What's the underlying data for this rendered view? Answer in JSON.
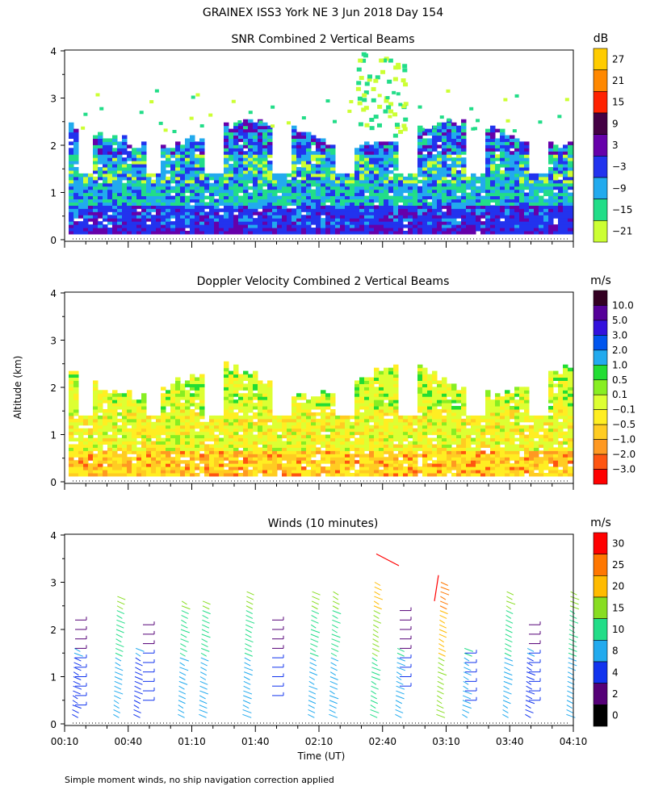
{
  "figure": {
    "title": "GRAINEX ISS3 York NE   3 Jun 2018 Day 154",
    "ylabel": "Altitude (km)",
    "xlabel": "Time (UT)",
    "footnote": "Simple moment winds, no ship navigation correction applied"
  },
  "chart_data": [
    {
      "type": "heatmap",
      "title": "SNR Combined 2 Vertical Beams",
      "unit": "dB",
      "y_ticks": [
        "0",
        "1",
        "2",
        "3",
        "4"
      ],
      "ylim": [
        0,
        4
      ],
      "colorbar": {
        "labels": [
          "27",
          "21",
          "15",
          "9",
          "3",
          "−3",
          "−9",
          "−15",
          "−21"
        ],
        "colors": [
          "#ffcc00",
          "#ff8800",
          "#ff2200",
          "#440044",
          "#6600aa",
          "#2233ee",
          "#22aaee",
          "#22dd88",
          "#ccff33"
        ]
      }
    },
    {
      "type": "heatmap",
      "title": "Doppler Velocity Combined 2 Vertical Beams",
      "unit": "m/s",
      "y_ticks": [
        "0",
        "1",
        "2",
        "3",
        "4"
      ],
      "ylim": [
        0,
        4
      ],
      "colorbar": {
        "labels": [
          "10.0",
          "5.0",
          "3.0",
          "2.0",
          "1.0",
          "0.5",
          "0.1",
          "−0.1",
          "−0.5",
          "−1.0",
          "−2.0",
          "−3.0"
        ],
        "colors": [
          "#330022",
          "#550099",
          "#3311dd",
          "#0055ee",
          "#22aaee",
          "#22dd33",
          "#88ee22",
          "#ddff33",
          "#ffee22",
          "#ffcc22",
          "#ff9922",
          "#ff5511",
          "#ff0000"
        ]
      }
    },
    {
      "type": "scatter",
      "title": "Winds (10 minutes)",
      "unit": "m/s",
      "y_ticks": [
        "0",
        "1",
        "2",
        "3",
        "4"
      ],
      "ylim": [
        0,
        4
      ],
      "x_ticks": [
        "00:10",
        "00:40",
        "01:10",
        "01:40",
        "02:10",
        "02:40",
        "03:10",
        "03:40",
        "04:10"
      ],
      "colorbar": {
        "labels": [
          "30",
          "25",
          "20",
          "15",
          "10",
          "8",
          "4",
          "2",
          "0"
        ],
        "colors": [
          "#ff0000",
          "#ff7700",
          "#ffbb00",
          "#88dd22",
          "#22dd88",
          "#22aaee",
          "#1133ee",
          "#550077",
          "#000000"
        ]
      }
    }
  ]
}
